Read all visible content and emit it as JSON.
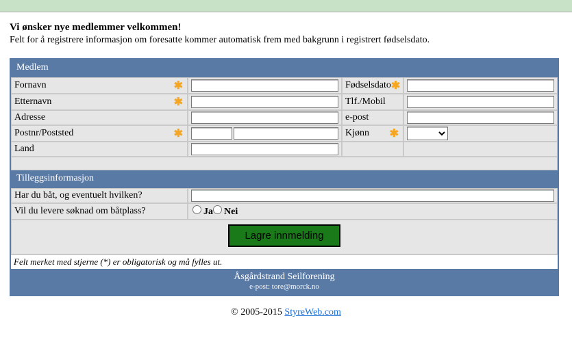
{
  "intro": {
    "heading": "Vi ønsker nye medlemmer velkommen!",
    "sub": "Felt for å registrere informasjon om foresatte kommer automatisk frem med bakgrunn i registrert fødselsdato."
  },
  "sections": {
    "medlem": "Medlem",
    "tillegg": "Tilleggsinformasjon"
  },
  "labels": {
    "fornavn": "Fornavn",
    "etternavn": "Etternavn",
    "adresse": "Adresse",
    "postnr": "Postnr/Poststed",
    "land": "Land",
    "fodselsdato": "Fødselsdato",
    "tlf": "Tlf./Mobil",
    "epost": "e-post",
    "kjonn": "Kjønn",
    "bat": "Har du båt, og eventuelt hvilken?",
    "batplass": "Vil du levere søknad om båtplass?"
  },
  "radio": {
    "ja": "Ja",
    "nei": "Nei"
  },
  "buttons": {
    "save": "Lagre innmelding"
  },
  "note": "Felt merket med stjerne (*) er obligatorisk og må fylles ut.",
  "footer": {
    "org": "Åsgårdstrand Seilforening",
    "epost_label": "e-post: ",
    "epost": "tore@morck.no"
  },
  "copyright": {
    "text": "© 2005-2015 ",
    "link": "StyreWeb.com"
  },
  "colors": {
    "header": "#5a7aa6",
    "button": "#1a7a1a",
    "band": "#c8e2c8",
    "asterisk": "#f5a623"
  }
}
